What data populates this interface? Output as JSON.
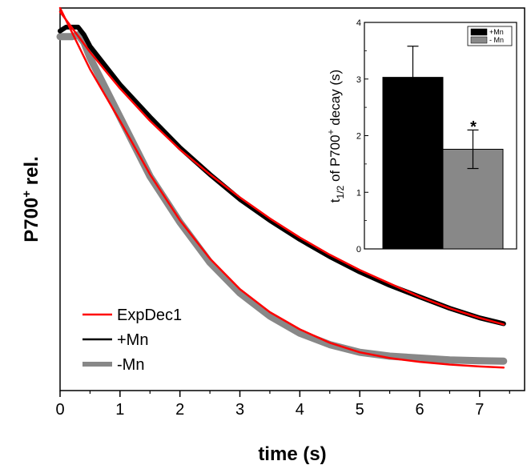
{
  "chart_data": [
    {
      "type": "line",
      "title": "",
      "xlabel": "time (s)",
      "ylabel_main": "P700",
      "ylabel_sup": "+",
      "ylabel_rest": " rel.",
      "xlim": [
        0,
        7.75
      ],
      "ylim": [
        0,
        1
      ],
      "x_ticks": [
        "0",
        "1",
        "2",
        "3",
        "4",
        "5",
        "6",
        "7"
      ],
      "y_ticks_shown": false,
      "legend": {
        "position": "bottom-left",
        "entries": [
          {
            "label": "ExpDec1",
            "color": "#ff0000"
          },
          {
            "label": "+Mn",
            "color": "#000000"
          },
          {
            "label": "-Mn",
            "color": "#888888"
          }
        ]
      },
      "series": [
        {
          "name": "+Mn",
          "color": "#000000",
          "x": [
            0,
            0.1,
            0.2,
            0.3,
            0.4,
            0.5,
            1,
            1.5,
            2,
            2.5,
            3,
            3.5,
            4,
            4.5,
            5,
            5.5,
            6,
            6.5,
            7,
            7.4
          ],
          "y": [
            0.94,
            0.95,
            0.95,
            0.95,
            0.93,
            0.9,
            0.8,
            0.715,
            0.635,
            0.565,
            0.5,
            0.445,
            0.395,
            0.35,
            0.31,
            0.275,
            0.245,
            0.215,
            0.19,
            0.175
          ]
        },
        {
          "name": "-Mn",
          "color": "#888888",
          "x": [
            0,
            0.1,
            0.2,
            0.3,
            0.4,
            0.5,
            1,
            1.5,
            2,
            2.5,
            3,
            3.5,
            4,
            4.5,
            5,
            5.5,
            6,
            6.5,
            7,
            7.4
          ],
          "y": [
            0.925,
            0.925,
            0.925,
            0.93,
            0.91,
            0.87,
            0.715,
            0.56,
            0.44,
            0.335,
            0.255,
            0.195,
            0.15,
            0.12,
            0.1,
            0.09,
            0.085,
            0.08,
            0.078,
            0.077
          ]
        },
        {
          "name": "ExpDec1 (+Mn)",
          "color": "#ff0000",
          "x": [
            0,
            0.5,
            1,
            1.5,
            2,
            2.5,
            3,
            3.5,
            4,
            4.5,
            5,
            5.5,
            6,
            6.5,
            7,
            7.4
          ],
          "y": [
            0.99,
            0.885,
            0.79,
            0.705,
            0.63,
            0.565,
            0.505,
            0.45,
            0.4,
            0.355,
            0.315,
            0.28,
            0.245,
            0.215,
            0.19,
            0.173
          ]
        },
        {
          "name": "ExpDec1 (-Mn)",
          "color": "#ff0000",
          "x": [
            0,
            0.5,
            1,
            1.5,
            2,
            2.5,
            3,
            3.5,
            4,
            4.5,
            5,
            5.5,
            6,
            6.5,
            7,
            7.4
          ],
          "y": [
            1.0,
            0.84,
            0.705,
            0.565,
            0.445,
            0.345,
            0.265,
            0.205,
            0.16,
            0.125,
            0.1,
            0.085,
            0.075,
            0.068,
            0.063,
            0.06
          ]
        }
      ]
    },
    {
      "type": "bar",
      "title": "",
      "ylabel_pre": "t",
      "ylabel_sub": "1/2",
      "ylabel_mid": " of P700",
      "ylabel_sup": "+",
      "ylabel_post": " decay (s)",
      "ylim": [
        0,
        4
      ],
      "y_ticks": [
        0,
        1,
        2,
        3,
        4
      ],
      "categories": [
        "+Mn",
        "- Mn"
      ],
      "values": [
        3.03,
        1.76
      ],
      "errors": [
        0.55,
        0.34
      ],
      "colors": [
        "#000000",
        "#888888"
      ],
      "annotation": "*",
      "legend": {
        "position": "top-right",
        "entries": [
          {
            "label": "+Mn",
            "color": "#000000"
          },
          {
            "label": "- Mn",
            "color": "#888888"
          }
        ]
      }
    }
  ]
}
